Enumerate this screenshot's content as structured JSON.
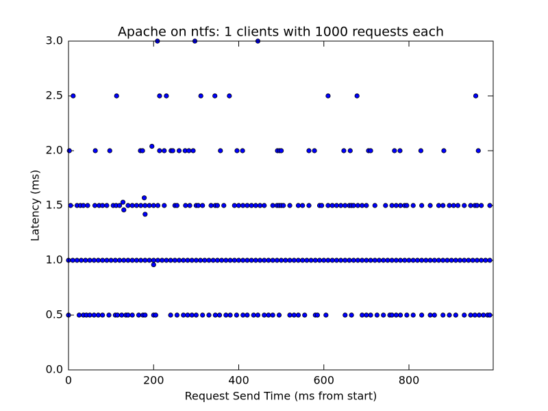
{
  "chart_data": {
    "type": "scatter",
    "title": "Apache on ntfs: 1 clients with 1000 requests each",
    "xlabel": "Request Send Time (ms from start)",
    "ylabel": "Latency (ms)",
    "color": "#0000ff",
    "xlim": [
      0,
      998
    ],
    "ylim": [
      0,
      3
    ],
    "xticks": [
      0,
      200,
      400,
      600,
      800
    ],
    "yticks": [
      {
        "value": 0,
        "label": "0.0"
      },
      0.5,
      {
        "value": 1,
        "label": "1.0"
      },
      1.5,
      {
        "value": 2,
        "label": "2.0"
      },
      2.5,
      {
        "value": 3,
        "label": "3.0"
      }
    ],
    "x": [
      209,
      297,
      445,
      11,
      113,
      214,
      230,
      311,
      344,
      378,
      610,
      678,
      957,
      2,
      63,
      97,
      169,
      174,
      214,
      225,
      241,
      245,
      260,
      274,
      283,
      293,
      357,
      396,
      409,
      491,
      496,
      500,
      565,
      578,
      647,
      662,
      705,
      710,
      766,
      779,
      828,
      882,
      963,
      196,
      5,
      20,
      28,
      35,
      45,
      62,
      72,
      80,
      90,
      105,
      112,
      120,
      140,
      150,
      160,
      170,
      180,
      190,
      200,
      210,
      225,
      250,
      255,
      275,
      285,
      300,
      305,
      315,
      335,
      345,
      350,
      365,
      390,
      400,
      410,
      420,
      430,
      440,
      450,
      460,
      480,
      490,
      495,
      500,
      505,
      520,
      540,
      550,
      565,
      590,
      595,
      610,
      620,
      630,
      640,
      650,
      660,
      665,
      670,
      680,
      690,
      700,
      720,
      745,
      760,
      770,
      780,
      790,
      795,
      810,
      830,
      850,
      870,
      880,
      895,
      905,
      915,
      930,
      945,
      955,
      960,
      970,
      990,
      128,
      130,
      178,
      180,
      0,
      10,
      20,
      30,
      40,
      50,
      60,
      70,
      80,
      90,
      100,
      110,
      120,
      130,
      140,
      150,
      160,
      170,
      180,
      190,
      200,
      210,
      220,
      230,
      240,
      250,
      260,
      270,
      280,
      290,
      300,
      310,
      320,
      330,
      340,
      350,
      360,
      370,
      380,
      390,
      400,
      410,
      420,
      430,
      440,
      450,
      460,
      470,
      480,
      490,
      500,
      510,
      520,
      530,
      540,
      550,
      560,
      570,
      580,
      590,
      600,
      610,
      620,
      630,
      640,
      650,
      660,
      670,
      680,
      690,
      700,
      710,
      720,
      730,
      740,
      750,
      760,
      770,
      780,
      790,
      800,
      810,
      820,
      830,
      840,
      850,
      860,
      870,
      880,
      890,
      900,
      910,
      920,
      930,
      940,
      950,
      960,
      970,
      980,
      990,
      200,
      0,
      25,
      35,
      42,
      50,
      60,
      70,
      80,
      95,
      110,
      115,
      125,
      135,
      140,
      150,
      165,
      175,
      180,
      200,
      205,
      240,
      255,
      270,
      280,
      290,
      300,
      315,
      330,
      345,
      355,
      370,
      380,
      395,
      410,
      420,
      435,
      445,
      460,
      470,
      480,
      495,
      520,
      530,
      540,
      555,
      580,
      585,
      605,
      650,
      665,
      690,
      700,
      710,
      725,
      740,
      755,
      760,
      770,
      780,
      795,
      810,
      830,
      850,
      860,
      880,
      895,
      910,
      930,
      945,
      955,
      965,
      975,
      985,
      990
    ],
    "values": [
      3,
      3,
      3,
      2.5,
      2.5,
      2.5,
      2.5,
      2.5,
      2.5,
      2.5,
      2.5,
      2.5,
      2.5,
      2,
      2,
      2,
      2,
      2,
      2,
      2,
      2,
      2,
      2,
      2,
      2,
      2,
      2,
      2,
      2,
      2,
      2,
      2,
      2,
      2,
      2,
      2,
      2,
      2,
      2,
      2,
      2,
      2,
      2,
      2.04,
      1.5,
      1.5,
      1.5,
      1.5,
      1.5,
      1.5,
      1.5,
      1.5,
      1.5,
      1.5,
      1.5,
      1.5,
      1.5,
      1.5,
      1.5,
      1.5,
      1.5,
      1.5,
      1.5,
      1.5,
      1.5,
      1.5,
      1.5,
      1.5,
      1.5,
      1.5,
      1.5,
      1.5,
      1.5,
      1.5,
      1.5,
      1.5,
      1.5,
      1.5,
      1.5,
      1.5,
      1.5,
      1.5,
      1.5,
      1.5,
      1.5,
      1.5,
      1.5,
      1.5,
      1.5,
      1.5,
      1.5,
      1.5,
      1.5,
      1.5,
      1.5,
      1.5,
      1.5,
      1.5,
      1.5,
      1.5,
      1.5,
      1.5,
      1.5,
      1.5,
      1.5,
      1.5,
      1.5,
      1.5,
      1.5,
      1.5,
      1.5,
      1.5,
      1.5,
      1.5,
      1.5,
      1.5,
      1.5,
      1.5,
      1.5,
      1.5,
      1.5,
      1.5,
      1.5,
      1.5,
      1.5,
      1.5,
      1.5,
      1.53,
      1.46,
      1.57,
      1.42,
      1,
      1,
      1,
      1,
      1,
      1,
      1,
      1,
      1,
      1,
      1,
      1,
      1,
      1,
      1,
      1,
      1,
      1,
      1,
      1,
      1,
      1,
      1,
      1,
      1,
      1,
      1,
      1,
      1,
      1,
      1,
      1,
      1,
      1,
      1,
      1,
      1,
      1,
      1,
      1,
      1,
      1,
      1,
      1,
      1,
      1,
      1,
      1,
      1,
      1,
      1,
      1,
      1,
      1,
      1,
      1,
      1,
      1,
      1,
      1,
      1,
      1,
      1,
      1,
      1,
      1,
      1,
      1,
      1,
      1,
      1,
      1,
      1,
      1,
      1,
      1,
      1,
      1,
      1,
      1,
      1,
      1,
      1,
      1,
      1,
      1,
      1,
      1,
      1,
      1,
      1,
      1,
      1,
      1,
      1,
      1,
      1,
      1,
      1,
      1,
      0.96,
      0.5,
      0.5,
      0.5,
      0.5,
      0.5,
      0.5,
      0.5,
      0.5,
      0.5,
      0.5,
      0.5,
      0.5,
      0.5,
      0.5,
      0.5,
      0.5,
      0.5,
      0.5,
      0.5,
      0.5,
      0.5,
      0.5,
      0.5,
      0.5,
      0.5,
      0.5,
      0.5,
      0.5,
      0.5,
      0.5,
      0.5,
      0.5,
      0.5,
      0.5,
      0.5,
      0.5,
      0.5,
      0.5,
      0.5,
      0.5,
      0.5,
      0.5,
      0.5,
      0.5,
      0.5,
      0.5,
      0.5,
      0.5,
      0.5,
      0.5,
      0.5,
      0.5,
      0.5,
      0.5,
      0.5,
      0.5,
      0.5,
      0.5,
      0.5,
      0.5,
      0.5,
      0.5,
      0.5,
      0.5,
      0.5,
      0.5,
      0.5,
      0.5,
      0.5,
      0.5,
      0.5,
      0.5,
      0.5,
      0.5
    ]
  }
}
